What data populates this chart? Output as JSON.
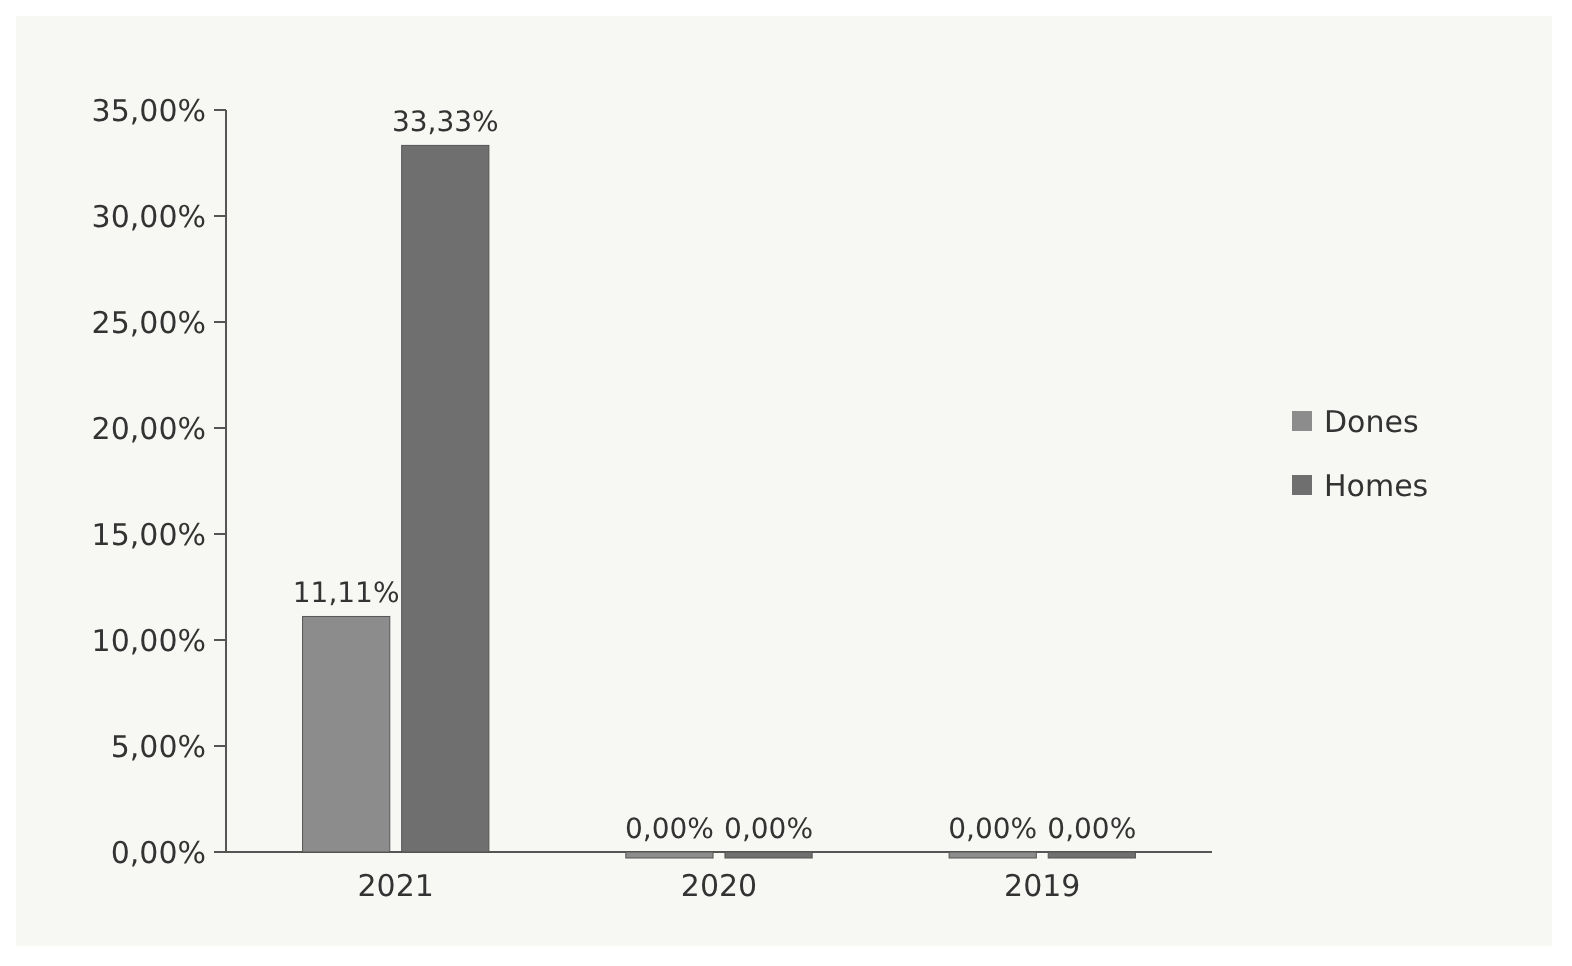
{
  "chart_data": {
    "type": "bar",
    "categories": [
      "2021",
      "2020",
      "2019"
    ],
    "series": [
      {
        "name": "Dones",
        "color": "#8c8c8c",
        "values": [
          11.11,
          0,
          0
        ],
        "value_labels": [
          "11,11%",
          "0,00%",
          "0,00%"
        ]
      },
      {
        "name": "Homes",
        "color": "#6f6f6f",
        "values": [
          33.33,
          0,
          0
        ],
        "value_labels": [
          "33,33%",
          "0,00%",
          "0,00%"
        ]
      }
    ],
    "ylim": [
      0,
      35
    ],
    "yticks": [
      {
        "value": 0,
        "label": "0,00%"
      },
      {
        "value": 5,
        "label": "5,00%"
      },
      {
        "value": 10,
        "label": "10,00%"
      },
      {
        "value": 15,
        "label": "15,00%"
      },
      {
        "value": 20,
        "label": "20,00%"
      },
      {
        "value": 25,
        "label": "25,00%"
      },
      {
        "value": 30,
        "label": "30,00%"
      },
      {
        "value": 35,
        "label": "35,00%"
      }
    ],
    "grid": false,
    "legend": "right"
  }
}
